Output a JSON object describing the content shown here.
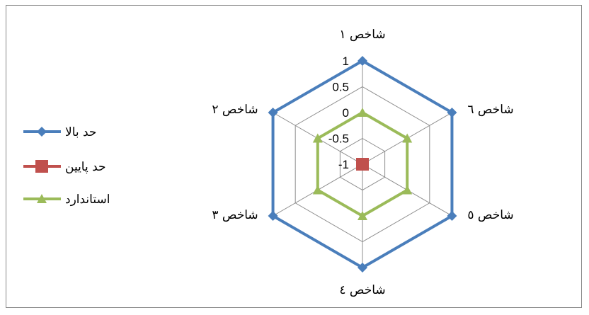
{
  "chart_data": {
    "type": "radar",
    "categories": [
      "شاخص ۱",
      "شاخص ٦",
      "شاخص ٥",
      "شاخص ٤",
      "شاخص ٣",
      "شاخص ۲"
    ],
    "ticks": [
      "1",
      "0.5",
      "0",
      "-0.5",
      "-1"
    ],
    "rlim": [
      -1,
      1
    ],
    "grid": true,
    "legend_position": "left",
    "series": [
      {
        "name": "حد بالا",
        "values": [
          1,
          1,
          1,
          1,
          1,
          1
        ],
        "color": "#4A7EBB",
        "marker": "diamond"
      },
      {
        "name": "حد پایین",
        "values": [
          -1,
          -1,
          -1,
          -1,
          -1,
          -1
        ],
        "color": "#C0504D",
        "marker": "square"
      },
      {
        "name": "استاندارد",
        "values": [
          0,
          0,
          0,
          0,
          0,
          0
        ],
        "color": "#9BBB59",
        "marker": "triangle"
      }
    ]
  }
}
